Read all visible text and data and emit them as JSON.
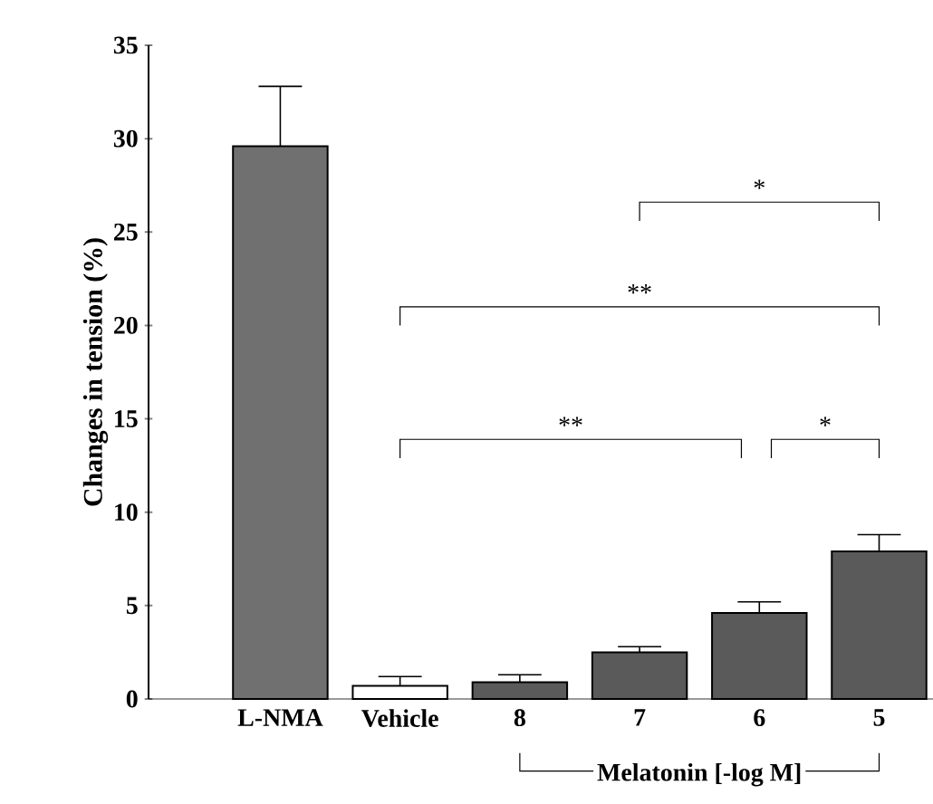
{
  "chart_data": {
    "type": "bar",
    "ylabel": "Changes in tension (%)",
    "categories": [
      "L-NMA",
      "Vehicle",
      "8",
      "7",
      "6",
      "5"
    ],
    "values": [
      29.6,
      0.7,
      0.9,
      2.5,
      4.6,
      7.9
    ],
    "errors": [
      3.2,
      0.5,
      0.4,
      0.3,
      0.6,
      0.9
    ],
    "colors": [
      "#707070",
      "#ffffff",
      "#5a5a5a",
      "#5a5a5a",
      "#5a5a5a",
      "#5a5a5a"
    ],
    "ylim": [
      0,
      35
    ],
    "yticks": [
      0,
      5,
      10,
      15,
      20,
      25,
      30,
      35
    ],
    "grid": false,
    "annotations": [
      "*",
      "**",
      "**",
      "*",
      "Melatonin [-log M]"
    ]
  }
}
